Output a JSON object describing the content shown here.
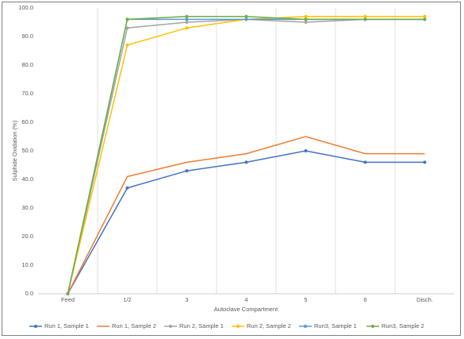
{
  "chart_data": {
    "type": "line",
    "y_label": "Sulphide Oxidation (%)",
    "x_label": "Autoclave Compartment",
    "categories": [
      "Feed",
      "1/2",
      "3",
      "4",
      "5",
      "6",
      "Disch."
    ],
    "ylim": [
      0,
      100
    ],
    "yticks": [
      {
        "value": 0,
        "label": "0.0"
      },
      {
        "value": 10,
        "label": "10.0"
      },
      {
        "value": 20,
        "label": "20.0"
      },
      {
        "value": 30,
        "label": "30.0"
      },
      {
        "value": 40,
        "label": "40.0"
      },
      {
        "value": 50,
        "label": "50.0"
      },
      {
        "value": 60,
        "label": "60.0"
      },
      {
        "value": 70,
        "label": "70.0"
      },
      {
        "value": 80,
        "label": "80.0"
      },
      {
        "value": 90,
        "label": "90.0"
      },
      {
        "value": 100,
        "label": "100.0"
      }
    ],
    "xgrid": true,
    "legend": "bottom",
    "series": [
      {
        "name": "Run 1, Sample 1",
        "color": "#4472c4",
        "marker": true,
        "values": [
          0,
          37,
          43,
          46,
          50,
          46,
          46
        ]
      },
      {
        "name": "Run 1, Sample 2",
        "color": "#ed7d31",
        "marker": false,
        "values": [
          0,
          41,
          46,
          49,
          55,
          49,
          49
        ]
      },
      {
        "name": "Run 2, Sample 1",
        "color": "#a5a5a5",
        "marker": true,
        "values": [
          0,
          93,
          95,
          96,
          95,
          96,
          96
        ]
      },
      {
        "name": "Run 2, Sample 2",
        "color": "#ffc000",
        "marker": true,
        "values": [
          0,
          87,
          93,
          96,
          97,
          97,
          97
        ]
      },
      {
        "name": "Run3, Sample 1",
        "color": "#5b9bd5",
        "marker": true,
        "values": [
          0,
          96,
          96,
          96,
          96,
          96,
          96
        ]
      },
      {
        "name": "Run3, Sample 2",
        "color": "#70ad47",
        "marker": true,
        "values": [
          0,
          96,
          97,
          97,
          96,
          96,
          96
        ]
      }
    ]
  }
}
